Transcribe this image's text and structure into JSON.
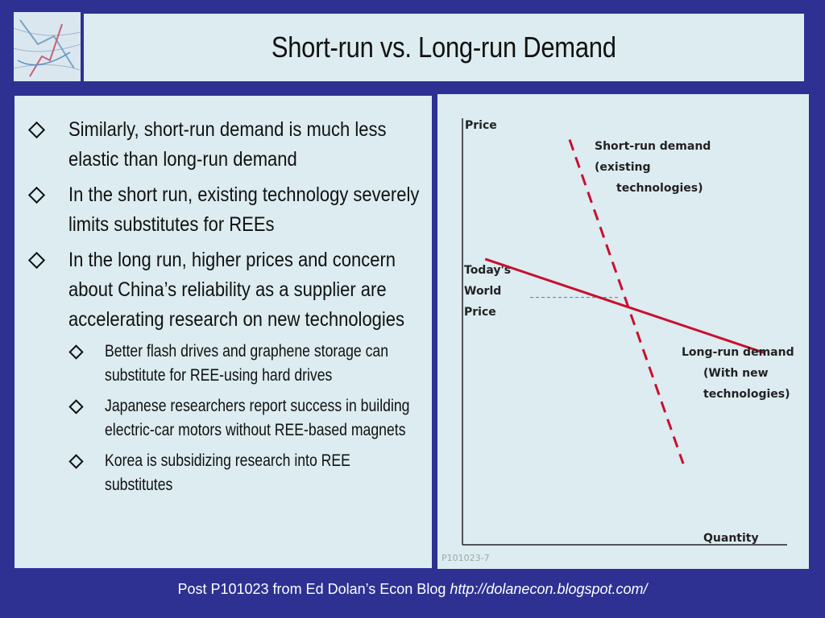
{
  "slide": {
    "title": "Short-run vs. Long-run Demand",
    "bullets": [
      {
        "text": "Similarly, short-run demand is much less elastic than long-run demand"
      },
      {
        "text": "In the short run, existing technology severely limits substitutes for REEs"
      },
      {
        "text": "In the long run, higher prices and concern about China’s reliability as a supplier are accelerating research on new technologies",
        "sub": [
          "Better flash drives and graphene storage can substitute for REE-using hard drives",
          "Japanese researchers report success in building electric-car motors without REE-based magnets",
          "Korea is subsidizing research into REE substitutes"
        ]
      }
    ]
  },
  "footer": {
    "text": "Post P101023 from Ed Dolan’s Econ Blog",
    "url": "http://dolanecon.blogspot.com/"
  },
  "chart_data": {
    "type": "line",
    "y_axis_label": "Price",
    "x_axis_label": "Quantity",
    "reference_label": [
      "Today's",
      "World",
      "Price"
    ],
    "figure_id": "P101023-7",
    "series": [
      {
        "name": "Short-run demand (existing technologies)",
        "style": "dashed",
        "label_lines": [
          "Short-run demand",
          "(existing",
          "technologies)"
        ],
        "points": [
          [
            0.33,
            0.95
          ],
          [
            0.68,
            0.19
          ]
        ]
      },
      {
        "name": "Long-run demand (With new technologies)",
        "style": "solid",
        "label_lines": [
          "Long-run demand",
          "(With new",
          "technologies)"
        ],
        "points": [
          [
            0.07,
            0.67
          ],
          [
            0.93,
            0.45
          ]
        ]
      }
    ],
    "reference_price": 0.58,
    "colors": {
      "curve": "#c8102e",
      "reference": "#4a7fc1",
      "axis": "#222"
    }
  }
}
